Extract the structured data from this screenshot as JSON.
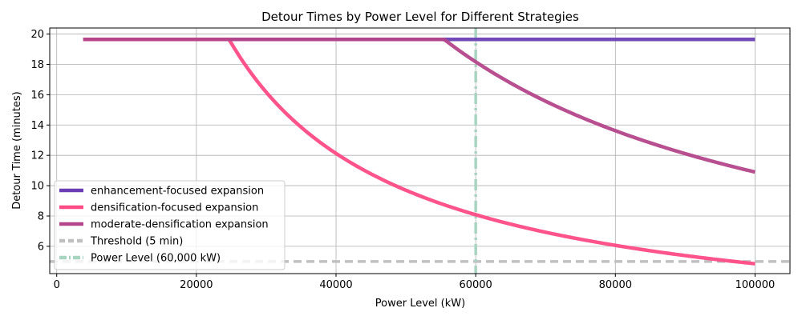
{
  "chart_data": {
    "type": "line",
    "title": "Detour Times by Power Level for Different Strategies",
    "xlabel": "Power Level (kW)",
    "ylabel": "Detour Time (minutes)",
    "xlim": [
      -1000,
      105000
    ],
    "ylim": [
      4.2,
      20.4
    ],
    "xticks": [
      0,
      20000,
      40000,
      60000,
      80000,
      100000
    ],
    "yticks": [
      6,
      8,
      10,
      12,
      14,
      16,
      18,
      20
    ],
    "grid": true,
    "legend_position": "lower-left",
    "series": [
      {
        "name": "enhancement-focused expansion",
        "color": "#6a3fb5",
        "form": "flat",
        "x_start": 3800,
        "x_end": 100000,
        "cap": 19.65
      },
      {
        "name": "densification-focused expansion",
        "color": "#ff4a86",
        "form": "inverse",
        "x_start": 3800,
        "x_end": 100000,
        "cap": 19.65,
        "constant_kw_min": 485000
      },
      {
        "name": "moderate-densification expansion",
        "color": "#b3468a",
        "form": "inverse",
        "x_start": 3800,
        "x_end": 100000,
        "cap": 19.65,
        "constant_kw_min": 1090000
      }
    ],
    "reference_lines": [
      {
        "name": "Threshold (5 min)",
        "orientation": "horizontal",
        "value": 5,
        "color": "#c0c0c0",
        "style": "dashed"
      },
      {
        "name": "Power Level (60,000 kW)",
        "orientation": "vertical",
        "value": 60000,
        "color": "#a8d5c2",
        "style": "dashdot"
      }
    ]
  }
}
